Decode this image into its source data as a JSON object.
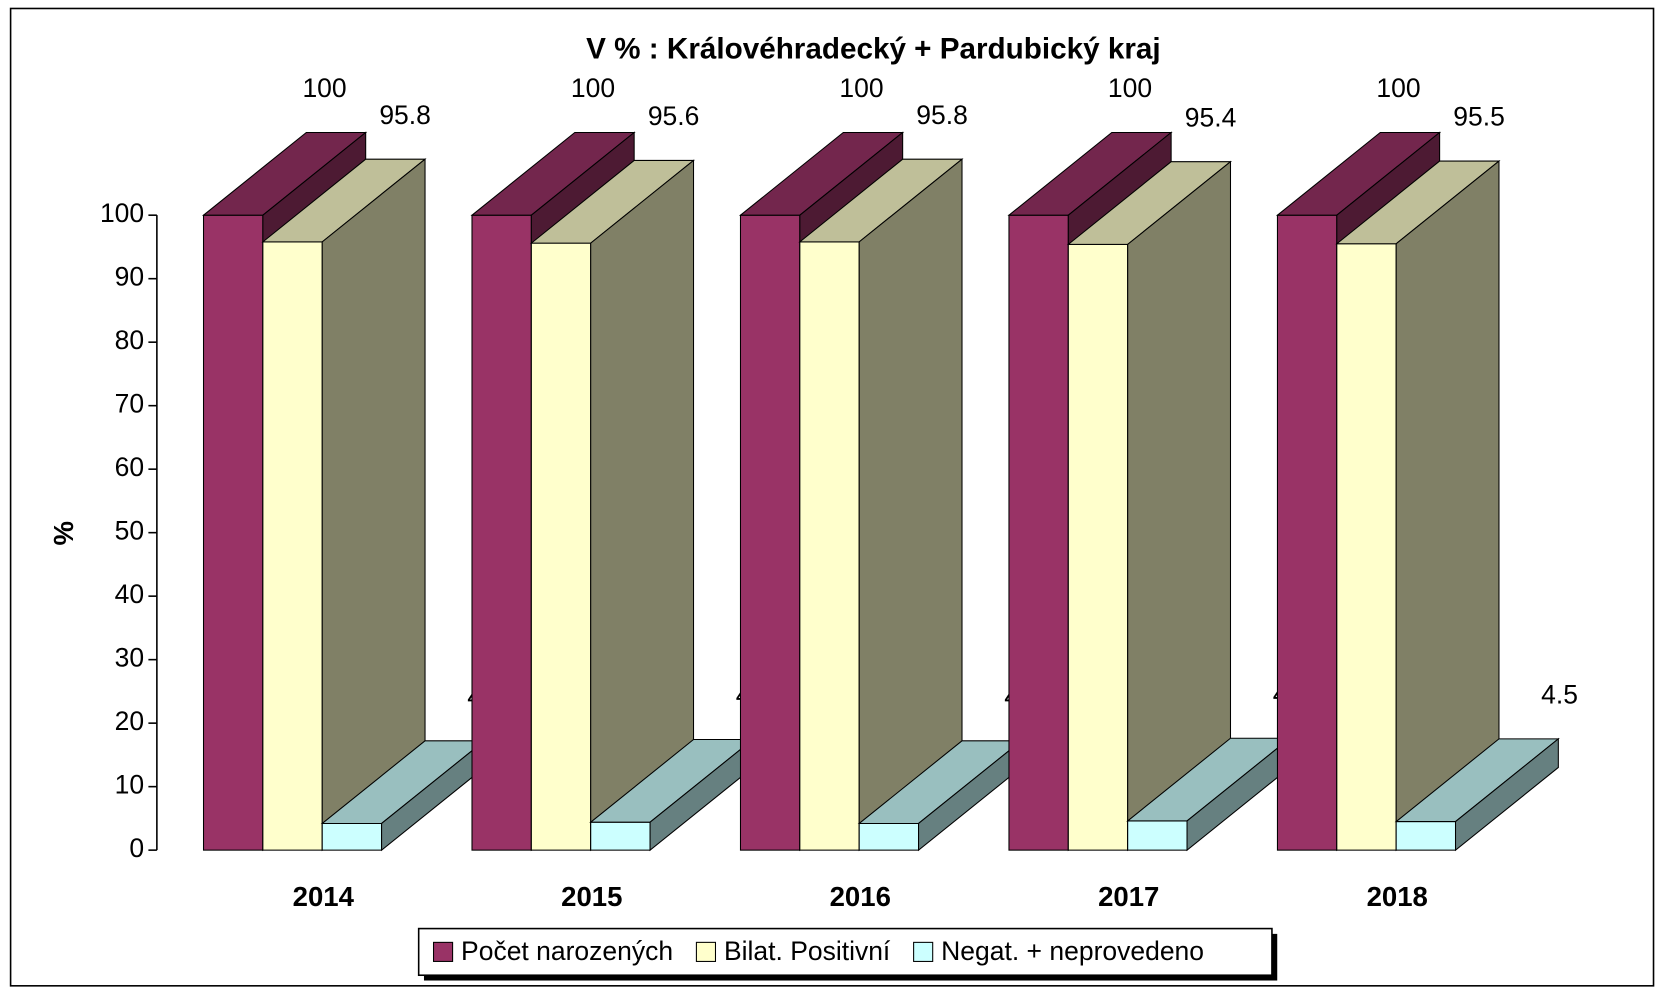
{
  "chart_data": {
    "type": "bar3d",
    "title": "V % : Královéhradecký + Pardubický kraj",
    "y_axis_label": "%",
    "categories": [
      "2014",
      "2015",
      "2016",
      "2017",
      "2018"
    ],
    "series": [
      {
        "name": "Počet narozených",
        "color": "#993366",
        "values": [
          100,
          100,
          100,
          100,
          100
        ]
      },
      {
        "name": "Bilat. Positivní",
        "color": "#ffffcc",
        "values": [
          95.8,
          95.6,
          95.8,
          95.4,
          95.5
        ]
      },
      {
        "name": "Negat. + neprovedeno",
        "color": "#ccffff",
        "values": [
          4.2,
          4.4,
          4.2,
          4.6,
          4.5
        ]
      }
    ],
    "ylim": [
      0,
      100
    ],
    "yticks": [
      0,
      10,
      20,
      30,
      40,
      50,
      60,
      70,
      80,
      90,
      100
    ],
    "legend": "bottom"
  }
}
